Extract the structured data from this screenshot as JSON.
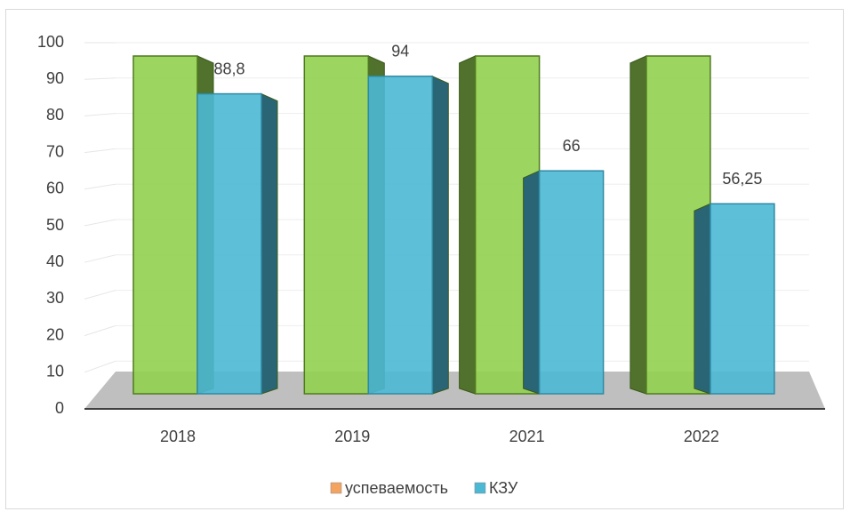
{
  "chart_data": {
    "type": "bar3d",
    "categories": [
      "2018",
      "2019",
      "2021",
      "2022"
    ],
    "series": [
      {
        "name": "успеваемость",
        "color": "#92d050",
        "legend_color": "#f4a460",
        "values": [
          100,
          100,
          100,
          100
        ]
      },
      {
        "name": "КЗУ",
        "color": "#4bb8d4",
        "values": [
          88.8,
          94,
          66,
          56.25
        ],
        "value_labels": [
          "88,8",
          "94",
          "66",
          "56,25"
        ]
      }
    ],
    "ylim": [
      0,
      100
    ],
    "yticks": [
      0,
      10,
      20,
      30,
      40,
      50,
      60,
      70,
      80,
      90,
      100
    ],
    "grid": true
  }
}
